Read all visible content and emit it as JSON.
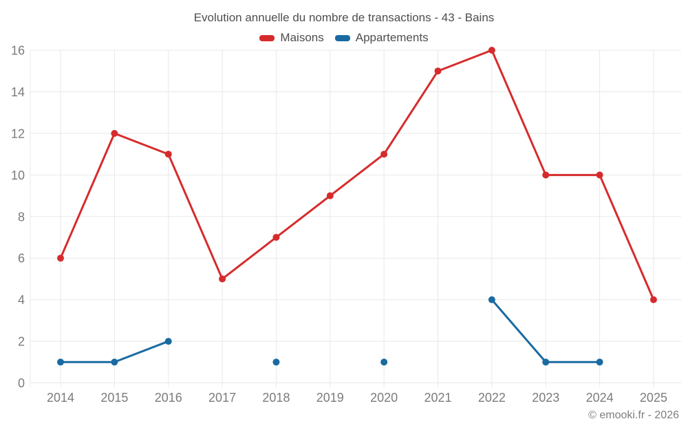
{
  "page": {
    "background": "#ffffff"
  },
  "footer": {
    "credit": "© emooki.fr - 2026"
  },
  "chart_data": {
    "type": "line",
    "title": "Evolution annuelle du nombre de transactions - 43 - Bains",
    "categories": [
      "2014",
      "2015",
      "2016",
      "2017",
      "2018",
      "2019",
      "2020",
      "2021",
      "2022",
      "2023",
      "2024",
      "2025"
    ],
    "series": [
      {
        "name": "Maisons",
        "color": "#d62b2c",
        "marker": "circle",
        "values": [
          6,
          12,
          11,
          5,
          7,
          9,
          11,
          15,
          16,
          10,
          10,
          4
        ]
      },
      {
        "name": "Appartements",
        "color": "#1a6aa2",
        "marker": "circle",
        "values": [
          1,
          1,
          2,
          null,
          1,
          null,
          1,
          null,
          4,
          1,
          1,
          null
        ]
      }
    ],
    "xlabel": "",
    "ylabel": "",
    "ylim": [
      0,
      16
    ],
    "yticks": [
      0,
      2,
      4,
      6,
      8,
      10,
      12,
      14,
      16
    ],
    "grid": true,
    "legend_position": "top",
    "grid_color": "#e8e8e8",
    "axis_text_color": "#7b7b7b"
  }
}
